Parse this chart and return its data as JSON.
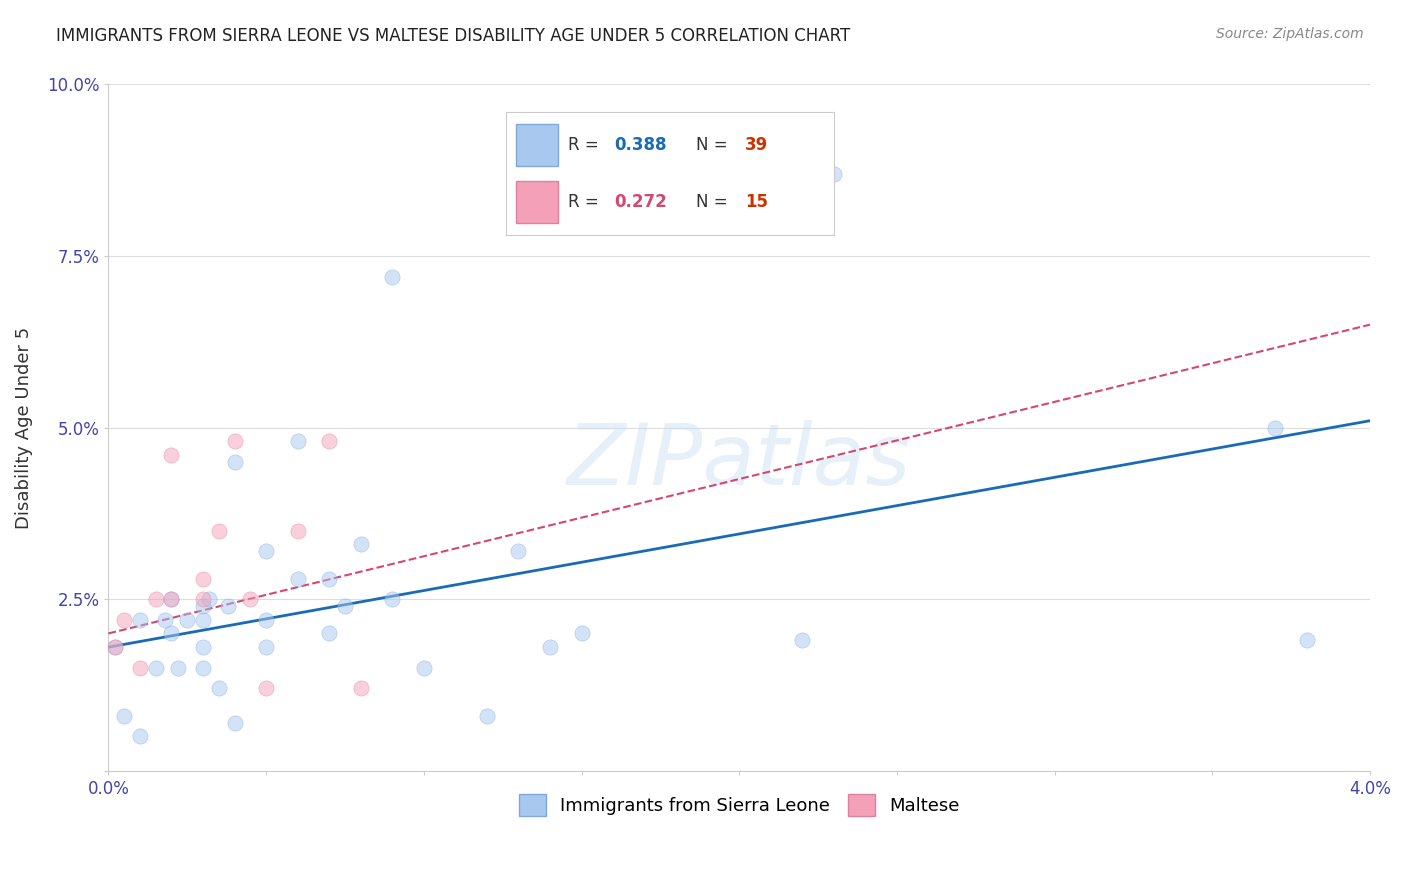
{
  "title": "IMMIGRANTS FROM SIERRA LEONE VS MALTESE DISABILITY AGE UNDER 5 CORRELATION CHART",
  "source": "Source: ZipAtlas.com",
  "ylabel": "Disability Age Under 5",
  "xlim": [
    0.0,
    0.04
  ],
  "ylim": [
    0.0,
    0.1
  ],
  "xticks": [
    0.0,
    0.005,
    0.01,
    0.015,
    0.02,
    0.025,
    0.03,
    0.035,
    0.04
  ],
  "yticks": [
    0.0,
    0.025,
    0.05,
    0.075,
    0.1
  ],
  "xtick_labels": [
    "0.0%",
    "",
    "",
    "",
    "",
    "",
    "",
    "",
    "4.0%"
  ],
  "ytick_labels": [
    "",
    "2.5%",
    "5.0%",
    "7.5%",
    "10.0%"
  ],
  "blue_scatter_x": [
    0.0002,
    0.0005,
    0.001,
    0.001,
    0.0015,
    0.0018,
    0.002,
    0.002,
    0.0022,
    0.0025,
    0.003,
    0.003,
    0.003,
    0.003,
    0.0032,
    0.0035,
    0.0038,
    0.004,
    0.004,
    0.005,
    0.005,
    0.005,
    0.006,
    0.006,
    0.007,
    0.007,
    0.0075,
    0.008,
    0.009,
    0.009,
    0.01,
    0.012,
    0.013,
    0.014,
    0.015,
    0.022,
    0.023,
    0.037,
    0.038
  ],
  "blue_scatter_y": [
    0.018,
    0.008,
    0.005,
    0.022,
    0.015,
    0.022,
    0.02,
    0.025,
    0.015,
    0.022,
    0.024,
    0.022,
    0.018,
    0.015,
    0.025,
    0.012,
    0.024,
    0.007,
    0.045,
    0.032,
    0.022,
    0.018,
    0.048,
    0.028,
    0.028,
    0.02,
    0.024,
    0.033,
    0.072,
    0.025,
    0.015,
    0.008,
    0.032,
    0.018,
    0.02,
    0.019,
    0.087,
    0.05,
    0.019
  ],
  "pink_scatter_x": [
    0.0002,
    0.0005,
    0.001,
    0.0015,
    0.002,
    0.002,
    0.003,
    0.003,
    0.0035,
    0.004,
    0.0045,
    0.005,
    0.006,
    0.007,
    0.008
  ],
  "pink_scatter_y": [
    0.018,
    0.022,
    0.015,
    0.025,
    0.046,
    0.025,
    0.028,
    0.025,
    0.035,
    0.048,
    0.025,
    0.012,
    0.035,
    0.048,
    0.012
  ],
  "blue_line_x": [
    0.0,
    0.04
  ],
  "blue_line_y": [
    0.018,
    0.051
  ],
  "pink_line_x": [
    0.0,
    0.04
  ],
  "pink_line_y": [
    0.02,
    0.065
  ],
  "scatter_size": 120,
  "scatter_alpha": 0.5,
  "line_color_blue": "#1a6bb5",
  "line_color_pink": "#d44870",
  "scatter_color_blue": "#a8c8f0",
  "scatter_color_pink": "#f4a0b8",
  "scatter_edge_blue": "#80a8d8",
  "scatter_edge_pink": "#e080a0",
  "watermark": "ZIPatlas",
  "background_color": "#ffffff",
  "grid_color": "#dddddd",
  "r_blue": "0.388",
  "n_blue": "39",
  "r_pink": "0.272",
  "n_pink": "15",
  "legend_bottom_labels": [
    "Immigrants from Sierra Leone",
    "Maltese"
  ]
}
